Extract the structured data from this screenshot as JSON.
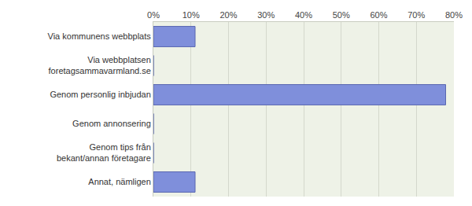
{
  "chart_data": {
    "type": "bar",
    "orientation": "horizontal",
    "categories": [
      "Via kommunens webbplats",
      "Via webbplatsen foretagsammavarmland.se",
      "Genom personlig inbjudan",
      "Genom annonsering",
      "Genom tips från bekant/annan företagare",
      "Annat, nämligen"
    ],
    "values": [
      11.1,
      0,
      77.8,
      0,
      0,
      11.1
    ],
    "color": "#7f8fdb",
    "xlim": [
      0,
      80
    ],
    "xticks": [
      {
        "value": 0,
        "label": "0%"
      },
      {
        "value": 10,
        "label": "10%"
      },
      {
        "value": 20,
        "label": "20%"
      },
      {
        "value": 30,
        "label": "30%"
      },
      {
        "value": 40,
        "label": "40%"
      },
      {
        "value": 50,
        "label": "50%"
      },
      {
        "value": 60,
        "label": "60%"
      },
      {
        "value": 70,
        "label": "70%"
      },
      {
        "value": 80,
        "label": "80%"
      }
    ],
    "grid": true
  }
}
